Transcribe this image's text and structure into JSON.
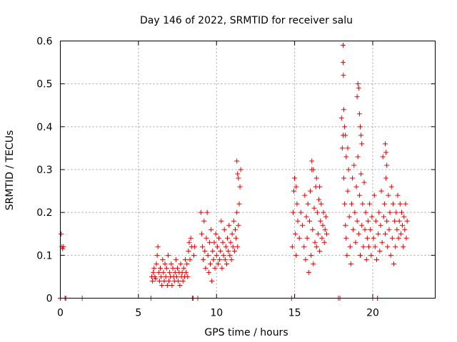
{
  "chart_data": {
    "type": "scatter",
    "title": "Day 146 of 2022, SRMTID for receiver salu",
    "xlabel": "GPS time / hours",
    "ylabel": "SRMTID / TECUs",
    "xlim": [
      0,
      24
    ],
    "ylim": [
      0,
      0.6
    ],
    "xticks": [
      0,
      5,
      10,
      15,
      20
    ],
    "yticks": [
      0,
      0.1,
      0.2,
      0.3,
      0.4,
      0.5,
      0.6
    ],
    "xtick_labels": [
      "0",
      "5",
      "10",
      "15",
      "20"
    ],
    "ytick_labels": [
      "0",
      "0.1",
      "0.2",
      "0.3",
      "0.4",
      "0.5",
      "0.6"
    ],
    "grid": true,
    "marker": "+",
    "color": "#e00000",
    "series": [
      {
        "name": "SRMTID",
        "x": [
          0.0,
          0.05,
          0.1,
          0.15,
          0.2,
          0.3,
          0.35,
          1.4,
          5.8,
          5.85,
          5.9,
          5.95,
          6.0,
          6.05,
          6.1,
          6.15,
          6.2,
          6.25,
          6.3,
          6.35,
          6.4,
          6.45,
          6.5,
          6.55,
          6.6,
          6.65,
          6.7,
          6.75,
          6.8,
          6.85,
          6.9,
          6.95,
          7.0,
          7.05,
          7.1,
          7.15,
          7.2,
          7.25,
          7.3,
          7.35,
          7.4,
          7.45,
          7.5,
          7.55,
          7.6,
          7.65,
          7.7,
          7.75,
          7.8,
          7.85,
          7.9,
          7.95,
          8.0,
          8.05,
          8.1,
          8.15,
          8.2,
          8.25,
          8.3,
          8.35,
          8.4,
          8.45,
          8.5,
          8.55,
          8.6,
          8.8,
          9.0,
          9.05,
          9.1,
          9.15,
          9.2,
          9.25,
          9.3,
          9.35,
          9.4,
          9.45,
          9.5,
          9.55,
          9.6,
          9.65,
          9.7,
          9.75,
          9.8,
          9.85,
          9.9,
          9.95,
          10.0,
          10.05,
          10.1,
          10.15,
          10.2,
          10.25,
          10.3,
          10.35,
          10.4,
          10.45,
          10.5,
          10.55,
          10.6,
          10.65,
          10.7,
          10.75,
          10.8,
          10.85,
          10.9,
          10.95,
          11.0,
          11.05,
          11.1,
          11.15,
          11.2,
          11.25,
          11.3,
          11.35,
          11.4,
          11.45,
          11.5,
          11.55,
          14.8,
          14.85,
          14.9,
          14.95,
          15.0,
          15.05,
          15.1,
          15.15,
          15.2,
          15.3,
          15.4,
          15.5,
          15.6,
          15.65,
          15.7,
          15.75,
          15.8,
          15.85,
          15.9,
          15.95,
          16.0,
          16.05,
          16.1,
          16.15,
          16.2,
          16.25,
          16.3,
          16.35,
          16.4,
          16.45,
          16.5,
          16.55,
          16.6,
          16.65,
          16.7,
          16.75,
          16.8,
          16.85,
          16.9,
          16.95,
          17.0,
          17.05,
          17.8,
          17.9,
          18.0,
          18.05,
          18.1,
          18.15,
          18.2,
          18.25,
          18.3,
          18.35,
          18.4,
          18.45,
          18.5,
          18.55,
          18.6,
          18.65,
          18.7,
          18.75,
          18.8,
          18.85,
          18.9,
          18.95,
          19.0,
          19.05,
          19.1,
          19.15,
          19.2,
          19.25,
          19.3,
          19.35,
          19.4,
          19.45,
          19.5,
          19.55,
          19.6,
          19.65,
          19.7,
          19.75,
          19.8,
          19.85,
          19.9,
          19.95,
          20.0,
          20.05,
          20.1,
          20.15,
          20.2,
          20.25,
          20.3,
          20.35,
          20.4,
          20.45,
          20.5,
          20.55,
          20.6,
          20.65,
          20.7,
          20.75,
          20.8,
          20.85,
          20.9,
          20.95,
          21.0,
          21.05,
          21.1,
          21.15,
          21.2,
          21.25,
          21.3,
          21.35,
          21.4,
          21.45,
          21.5,
          21.55,
          21.6,
          21.65,
          21.7,
          21.75,
          21.8,
          21.85,
          21.9,
          21.95,
          22.0,
          22.05,
          22.1,
          22.15,
          22.2,
          18.1,
          18.1,
          18.12,
          18.15,
          18.2,
          18.25,
          18.3,
          18.4,
          19.0,
          19.05,
          19.1,
          19.15,
          19.2,
          19.25,
          19.3,
          20.8,
          20.85,
          20.9,
          11.3,
          11.35,
          11.4,
          16.1,
          16.2,
          16.4,
          16.6,
          15.0,
          15.1
        ],
        "y": [
          0.0,
          0.15,
          0.12,
          0.115,
          0.12,
          0.0,
          0.0,
          0.0,
          0.0,
          0.05,
          0.04,
          0.06,
          0.07,
          0.05,
          0.045,
          0.08,
          0.1,
          0.12,
          0.06,
          0.04,
          0.07,
          0.05,
          0.03,
          0.09,
          0.06,
          0.04,
          0.08,
          0.05,
          0.07,
          0.03,
          0.1,
          0.04,
          0.06,
          0.05,
          0.08,
          0.03,
          0.07,
          0.05,
          0.04,
          0.06,
          0.09,
          0.05,
          0.07,
          0.04,
          0.06,
          0.03,
          0.08,
          0.05,
          0.06,
          0.04,
          0.07,
          0.05,
          0.09,
          0.06,
          0.08,
          0.05,
          0.11,
          0.13,
          0.09,
          0.14,
          0.12,
          0.0,
          0.0,
          0.1,
          0.12,
          0.0,
          0.2,
          0.15,
          0.12,
          0.09,
          0.18,
          0.11,
          0.07,
          0.14,
          0.2,
          0.1,
          0.06,
          0.13,
          0.08,
          0.16,
          0.04,
          0.11,
          0.09,
          0.13,
          0.07,
          0.15,
          0.1,
          0.12,
          0.08,
          0.14,
          0.09,
          0.11,
          0.18,
          0.07,
          0.13,
          0.1,
          0.16,
          0.09,
          0.12,
          0.08,
          0.14,
          0.11,
          0.17,
          0.1,
          0.13,
          0.09,
          0.15,
          0.12,
          0.18,
          0.11,
          0.16,
          0.14,
          0.2,
          0.12,
          0.17,
          0.22,
          0.26,
          0.3,
          0.0,
          0.12,
          0.2,
          0.25,
          0.28,
          0.15,
          0.1,
          0.22,
          0.18,
          0.14,
          0.2,
          0.17,
          0.12,
          0.24,
          0.09,
          0.19,
          0.14,
          0.22,
          0.06,
          0.18,
          0.25,
          0.1,
          0.3,
          0.16,
          0.08,
          0.21,
          0.13,
          0.26,
          0.12,
          0.2,
          0.15,
          0.23,
          0.11,
          0.18,
          0.22,
          0.14,
          0.17,
          0.2,
          0.13,
          0.16,
          0.19,
          0.15,
          0.0,
          0.0,
          0.42,
          0.35,
          0.38,
          0.28,
          0.22,
          0.17,
          0.14,
          0.1,
          0.25,
          0.3,
          0.19,
          0.12,
          0.08,
          0.22,
          0.28,
          0.16,
          0.31,
          0.2,
          0.13,
          0.26,
          0.18,
          0.33,
          0.15,
          0.24,
          0.1,
          0.29,
          0.17,
          0.22,
          0.12,
          0.27,
          0.16,
          0.2,
          0.09,
          0.14,
          0.18,
          0.12,
          0.22,
          0.16,
          0.1,
          0.19,
          0.0,
          0.14,
          0.24,
          0.12,
          0.18,
          0.09,
          0.0,
          0.15,
          0.2,
          0.11,
          0.17,
          0.25,
          0.13,
          0.33,
          0.19,
          0.22,
          0.15,
          0.28,
          0.18,
          0.12,
          0.24,
          0.16,
          0.2,
          0.1,
          0.26,
          0.14,
          0.22,
          0.08,
          0.18,
          0.12,
          0.2,
          0.16,
          0.24,
          0.14,
          0.18,
          0.22,
          0.15,
          0.2,
          0.17,
          0.12,
          0.19,
          0.16,
          0.22,
          0.14,
          0.18,
          0.59,
          0.55,
          0.52,
          0.44,
          0.4,
          0.38,
          0.33,
          0.35,
          0.47,
          0.5,
          0.49,
          0.43,
          0.4,
          0.38,
          0.36,
          0.36,
          0.34,
          0.31,
          0.32,
          0.29,
          0.28,
          0.32,
          0.3,
          0.28,
          0.26,
          0.28,
          0.26
        ]
      }
    ]
  }
}
